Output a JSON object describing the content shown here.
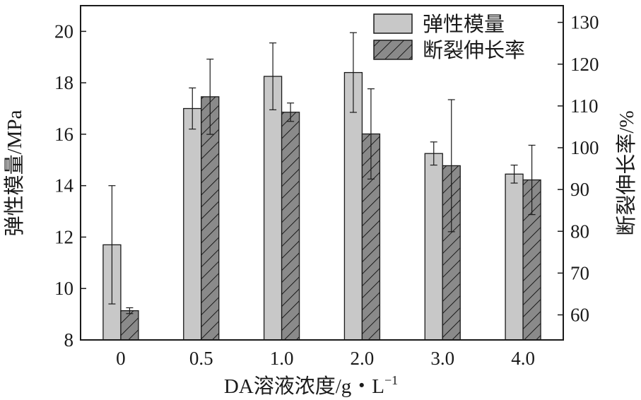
{
  "chart_data": {
    "type": "bar",
    "categories": [
      "0",
      "0.5",
      "1.0",
      "2.0",
      "3.0",
      "4.0"
    ],
    "xlabel": "DA溶液浓度/g・L",
    "xlabel_superscript": "−1",
    "ylabel_left": "弹性模量/MPa",
    "ylabel_right": "断裂伸长率/%",
    "y_left_range": [
      8,
      21
    ],
    "y_left_ticks": [
      "8",
      "10",
      "12",
      "14",
      "16",
      "18",
      "20"
    ],
    "y_right_range": [
      54,
      134
    ],
    "y_right_ticks": [
      "60",
      "70",
      "80",
      "90",
      "100",
      "110",
      "120",
      "130"
    ],
    "legend_position": "top-right",
    "series": [
      {
        "name": "弹性模量",
        "axis": "left",
        "fill": "#c8c8c8",
        "pattern": "solid",
        "values": [
          11.7,
          17.0,
          18.25,
          18.4,
          15.25,
          14.45
        ],
        "error": [
          2.3,
          0.8,
          1.3,
          1.55,
          0.45,
          0.35
        ]
      },
      {
        "name": "断裂伸长率",
        "axis": "right",
        "fill": "#8a8a8a",
        "pattern": "hatch",
        "values": [
          61.0,
          112.2,
          108.5,
          103.3,
          95.7,
          92.3
        ],
        "error": [
          0.7,
          9.0,
          2.2,
          10.8,
          15.8,
          8.3
        ]
      }
    ]
  }
}
